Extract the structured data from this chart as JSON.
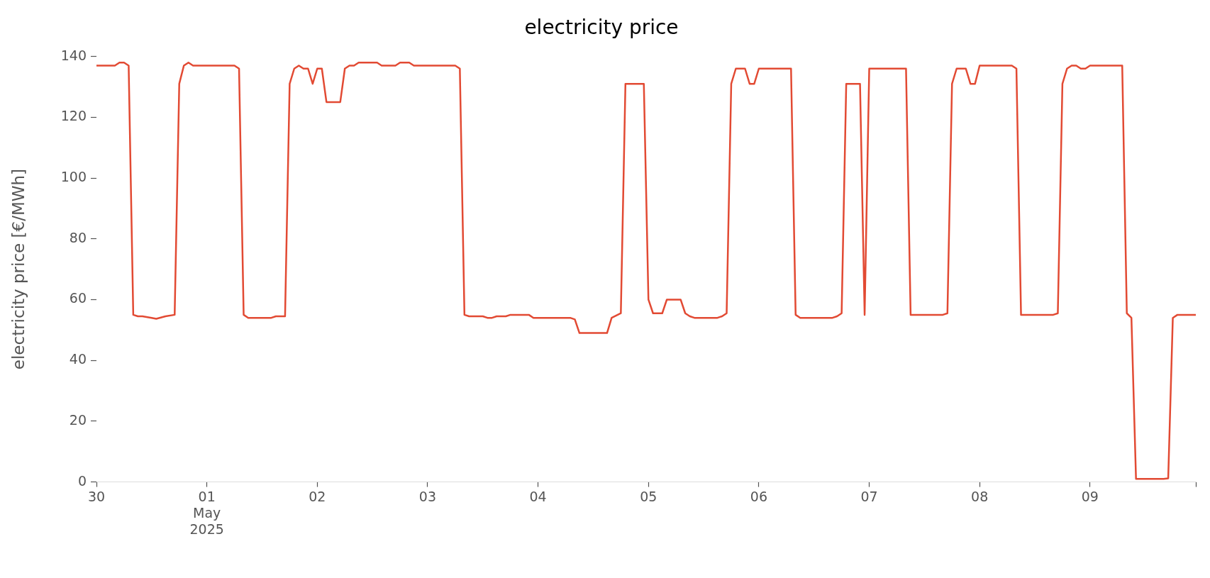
{
  "chart_data": {
    "type": "line",
    "title": "electricity price",
    "ylabel": "electricity price [€/MWh]",
    "x": [
      "2025-04-30T00:00",
      "2025-04-30T04:00",
      "2025-04-30T05:00",
      "2025-04-30T06:00",
      "2025-04-30T07:00",
      "2025-04-30T08:00",
      "2025-04-30T09:00",
      "2025-04-30T10:00",
      "2025-04-30T12:00",
      "2025-04-30T13:00",
      "2025-04-30T15:00",
      "2025-04-30T17:00",
      "2025-04-30T18:00",
      "2025-04-30T19:00",
      "2025-04-30T20:00",
      "2025-04-30T21:00",
      "2025-05-01T06:00",
      "2025-05-01T07:00",
      "2025-05-01T08:00",
      "2025-05-01T09:00",
      "2025-05-01T14:00",
      "2025-05-01T15:00",
      "2025-05-01T17:00",
      "2025-05-01T18:00",
      "2025-05-01T19:00",
      "2025-05-01T20:00",
      "2025-05-01T21:00",
      "2025-05-01T22:00",
      "2025-05-01T23:00",
      "2025-05-02T00:00",
      "2025-05-02T01:00",
      "2025-05-02T02:00",
      "2025-05-02T05:00",
      "2025-05-02T06:00",
      "2025-05-02T07:00",
      "2025-05-02T08:00",
      "2025-05-02T09:00",
      "2025-05-02T13:00",
      "2025-05-02T14:00",
      "2025-05-02T17:00",
      "2025-05-02T18:00",
      "2025-05-02T20:00",
      "2025-05-02T21:00",
      "2025-05-03T06:00",
      "2025-05-03T07:00",
      "2025-05-03T08:00",
      "2025-05-03T09:00",
      "2025-05-03T12:00",
      "2025-05-03T13:00",
      "2025-05-03T14:00",
      "2025-05-03T15:00",
      "2025-05-03T17:00",
      "2025-05-03T18:00",
      "2025-05-03T20:00",
      "2025-05-03T22:00",
      "2025-05-03T23:00",
      "2025-05-04T07:00",
      "2025-05-04T08:00",
      "2025-05-04T09:00",
      "2025-05-04T15:00",
      "2025-05-04T16:00",
      "2025-05-04T18:00",
      "2025-05-04T19:00",
      "2025-05-04T23:00",
      "2025-05-05T00:00",
      "2025-05-05T01:00",
      "2025-05-05T03:00",
      "2025-05-05T04:00",
      "2025-05-05T07:00",
      "2025-05-05T08:00",
      "2025-05-05T09:00",
      "2025-05-05T10:00",
      "2025-05-05T15:00",
      "2025-05-05T16:00",
      "2025-05-05T17:00",
      "2025-05-05T18:00",
      "2025-05-05T19:00",
      "2025-05-05T21:00",
      "2025-05-05T22:00",
      "2025-05-05T23:00",
      "2025-05-06T00:00",
      "2025-05-06T07:00",
      "2025-05-06T08:00",
      "2025-05-06T09:00",
      "2025-05-06T16:00",
      "2025-05-06T17:00",
      "2025-05-06T18:00",
      "2025-05-06T19:00",
      "2025-05-06T22:00",
      "2025-05-06T23:00",
      "2025-05-07T00:00",
      "2025-05-07T08:00",
      "2025-05-07T09:00",
      "2025-05-07T16:00",
      "2025-05-07T17:00",
      "2025-05-07T18:00",
      "2025-05-07T19:00",
      "2025-05-07T21:00",
      "2025-05-07T22:00",
      "2025-05-07T23:00",
      "2025-05-08T00:00",
      "2025-05-08T07:00",
      "2025-05-08T08:00",
      "2025-05-08T09:00",
      "2025-05-08T16:00",
      "2025-05-08T17:00",
      "2025-05-08T18:00",
      "2025-05-08T19:00",
      "2025-05-08T20:00",
      "2025-05-08T21:00",
      "2025-05-08T22:00",
      "2025-05-08T23:00",
      "2025-05-09T00:00",
      "2025-05-09T07:00",
      "2025-05-09T08:00",
      "2025-05-09T09:00",
      "2025-05-09T10:00",
      "2025-05-09T16:00",
      "2025-05-09T17:00",
      "2025-05-09T18:00",
      "2025-05-09T19:00",
      "2025-05-09T20:00",
      "2025-05-09T23:00"
    ],
    "series": [
      {
        "color": "#e24a33",
        "values": [
          137,
          137,
          138,
          138,
          137,
          55,
          54.5,
          54.5,
          54,
          53.7,
          54.5,
          55,
          131,
          137,
          138,
          137,
          137,
          136,
          55,
          54,
          54,
          54.5,
          54.5,
          131,
          136,
          137,
          136,
          136,
          131,
          136,
          136,
          125,
          125,
          136,
          137,
          137,
          138,
          138,
          137,
          137,
          138,
          138,
          137,
          137,
          136,
          55,
          54.5,
          54.5,
          54,
          54,
          54.5,
          54.5,
          55,
          55,
          55,
          54,
          54,
          53.5,
          49,
          49,
          54,
          55.5,
          131,
          131,
          60,
          55.5,
          55.5,
          60,
          60,
          55.5,
          54.5,
          54,
          54,
          54.5,
          55.5,
          131,
          136,
          136,
          131,
          131,
          136,
          136,
          55,
          54,
          54,
          54.5,
          55.5,
          131,
          131,
          55,
          136,
          136,
          55,
          55,
          55.5,
          131,
          136,
          136,
          131,
          131,
          137,
          137,
          136,
          55,
          55,
          55.5,
          131,
          136,
          137,
          137,
          136,
          136,
          137,
          137,
          55.5,
          54,
          1,
          1,
          1.2,
          54,
          55,
          55,
          55
        ]
      }
    ],
    "xlim": [
      "2025-04-30T00:00",
      "2025-05-09T23:00"
    ],
    "xticks": [
      {
        "value": "2025-04-30",
        "label": "30"
      },
      {
        "value": "2025-05-01",
        "label": "01\nMay\n2025"
      },
      {
        "value": "2025-05-02",
        "label": "02"
      },
      {
        "value": "2025-05-03",
        "label": "03"
      },
      {
        "value": "2025-05-04",
        "label": "04"
      },
      {
        "value": "2025-05-05",
        "label": "05"
      },
      {
        "value": "2025-05-06",
        "label": "06"
      },
      {
        "value": "2025-05-07",
        "label": "07"
      },
      {
        "value": "2025-05-08",
        "label": "08"
      },
      {
        "value": "2025-05-09",
        "label": "09"
      },
      {
        "value": "2025-05-09T23:00",
        "label": null
      }
    ],
    "ylim": [
      0,
      140
    ],
    "yticks": [
      0,
      20,
      40,
      60,
      80,
      100,
      120,
      140
    ],
    "grid": false,
    "legend": false,
    "marker": "none",
    "line_style": "solid"
  }
}
